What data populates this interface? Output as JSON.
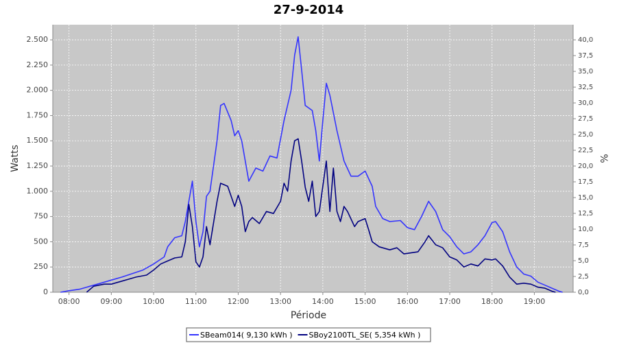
{
  "chart_data": {
    "type": "line",
    "title": "27-9-2014",
    "x_label": "Période",
    "y_label": "Watts",
    "y2_label": "%",
    "xlim": [
      "07:37",
      "19:55"
    ],
    "xticks": [
      "08:00",
      "09:00",
      "10:00",
      "11:00",
      "12:00",
      "13:00",
      "14:00",
      "15:00",
      "16:00",
      "17:00",
      "18:00",
      "19:00"
    ],
    "ylim": [
      0,
      2650
    ],
    "yticks": [
      0,
      250,
      500,
      750,
      {
        "value": 1000,
        "label": "1.000"
      },
      {
        "value": 1250,
        "label": "1.250"
      },
      {
        "value": 1500,
        "label": "1.500"
      },
      {
        "value": 1750,
        "label": "1.750"
      },
      {
        "value": 2000,
        "label": "2.000"
      },
      {
        "value": 2250,
        "label": "2.250"
      },
      {
        "value": 2500,
        "label": "2.500"
      }
    ],
    "y2lim": [
      0,
      42.4
    ],
    "y2ticks": [
      {
        "value": 0,
        "label": "0,0"
      },
      {
        "value": 2.5,
        "label": "2,5"
      },
      {
        "value": 5,
        "label": "5,0"
      },
      {
        "value": 7.5,
        "label": "7,5"
      },
      {
        "value": 10,
        "label": "10,0"
      },
      {
        "value": 12.5,
        "label": "12,5"
      },
      {
        "value": 15,
        "label": "15,0"
      },
      {
        "value": 17.5,
        "label": "17,5"
      },
      {
        "value": 20,
        "label": "20,0"
      },
      {
        "value": 22.5,
        "label": "22,5"
      },
      {
        "value": 25,
        "label": "25,0"
      },
      {
        "value": 27.5,
        "label": "27,5"
      },
      {
        "value": 30,
        "label": "30,0"
      },
      {
        "value": 32.5,
        "label": "32,5"
      },
      {
        "value": 35,
        "label": "35,0"
      },
      {
        "value": 37.5,
        "label": "37,5"
      },
      {
        "value": 40,
        "label": "40,0"
      }
    ],
    "grid": true,
    "series": [
      {
        "name": "SBeam014( 9,130 kWh )",
        "color": "#3333ff",
        "x": [
          "07:48",
          "08:00",
          "08:15",
          "08:30",
          "08:45",
          "09:00",
          "09:15",
          "09:30",
          "09:45",
          "10:00",
          "10:15",
          "10:20",
          "10:30",
          "10:40",
          "10:45",
          "10:55",
          "11:00",
          "11:05",
          "11:10",
          "11:15",
          "11:20",
          "11:30",
          "11:35",
          "11:40",
          "11:50",
          "11:55",
          "12:00",
          "12:05",
          "12:15",
          "12:25",
          "12:35",
          "12:45",
          "12:55",
          "13:05",
          "13:15",
          "13:20",
          "13:25",
          "13:30",
          "13:35",
          "13:45",
          "13:50",
          "13:55",
          "14:00",
          "14:05",
          "14:10",
          "14:20",
          "14:30",
          "14:40",
          "14:50",
          "15:00",
          "15:10",
          "15:15",
          "15:25",
          "15:35",
          "15:50",
          "16:00",
          "16:10",
          "16:20",
          "16:30",
          "16:40",
          "16:50",
          "17:00",
          "17:10",
          "17:20",
          "17:30",
          "17:40",
          "17:50",
          "18:00",
          "18:05",
          "18:15",
          "18:25",
          "18:35",
          "18:45",
          "18:55",
          "19:05",
          "19:15",
          "19:25",
          "19:35",
          "19:40"
        ],
        "values": [
          0,
          15,
          30,
          60,
          90,
          120,
          150,
          185,
          220,
          280,
          350,
          450,
          540,
          560,
          700,
          1100,
          700,
          450,
          600,
          950,
          1000,
          1500,
          1850,
          1870,
          1700,
          1550,
          1600,
          1500,
          1100,
          1230,
          1200,
          1350,
          1330,
          1700,
          2000,
          2350,
          2530,
          2200,
          1850,
          1800,
          1600,
          1300,
          1700,
          2070,
          1950,
          1600,
          1300,
          1150,
          1150,
          1200,
          1050,
          850,
          730,
          700,
          710,
          640,
          620,
          750,
          900,
          800,
          620,
          550,
          450,
          380,
          400,
          470,
          560,
          690,
          700,
          600,
          400,
          250,
          180,
          160,
          100,
          70,
          40,
          10,
          0
        ]
      },
      {
        "name": "SBoy2100TL_SE( 5,354 kWh )",
        "color": "#000080",
        "x": [
          "08:25",
          "08:35",
          "08:50",
          "09:00",
          "09:15",
          "09:25",
          "09:35",
          "09:50",
          "10:00",
          "10:10",
          "10:20",
          "10:30",
          "10:40",
          "10:45",
          "10:50",
          "10:55",
          "11:00",
          "11:05",
          "11:10",
          "11:15",
          "11:20",
          "11:30",
          "11:35",
          "11:45",
          "11:55",
          "12:00",
          "12:05",
          "12:10",
          "12:15",
          "12:20",
          "12:30",
          "12:40",
          "12:50",
          "13:00",
          "13:05",
          "13:10",
          "13:15",
          "13:20",
          "13:25",
          "13:30",
          "13:35",
          "13:40",
          "13:45",
          "13:50",
          "13:55",
          "14:00",
          "14:05",
          "14:10",
          "14:15",
          "14:20",
          "14:25",
          "14:30",
          "14:35",
          "14:45",
          "14:50",
          "15:00",
          "15:05",
          "15:10",
          "15:20",
          "15:35",
          "15:45",
          "15:55",
          "16:05",
          "16:15",
          "16:25",
          "16:30",
          "16:40",
          "16:50",
          "17:00",
          "17:10",
          "17:20",
          "17:30",
          "17:40",
          "17:50",
          "18:00",
          "18:05",
          "18:15",
          "18:25",
          "18:35",
          "18:45",
          "18:55",
          "19:05",
          "19:15",
          "19:25",
          "19:30"
        ],
        "values": [
          0,
          60,
          80,
          80,
          110,
          130,
          150,
          170,
          220,
          280,
          310,
          340,
          350,
          500,
          870,
          650,
          300,
          250,
          350,
          650,
          470,
          900,
          1080,
          1050,
          850,
          960,
          850,
          600,
          700,
          740,
          680,
          800,
          780,
          900,
          1080,
          1000,
          1300,
          1500,
          1520,
          1300,
          1040,
          900,
          1100,
          750,
          800,
          1050,
          1300,
          800,
          1230,
          800,
          700,
          850,
          800,
          650,
          700,
          730,
          620,
          500,
          450,
          420,
          440,
          380,
          390,
          400,
          500,
          560,
          470,
          440,
          350,
          320,
          250,
          280,
          260,
          330,
          320,
          330,
          260,
          150,
          80,
          90,
          80,
          50,
          40,
          10,
          0
        ]
      }
    ]
  }
}
